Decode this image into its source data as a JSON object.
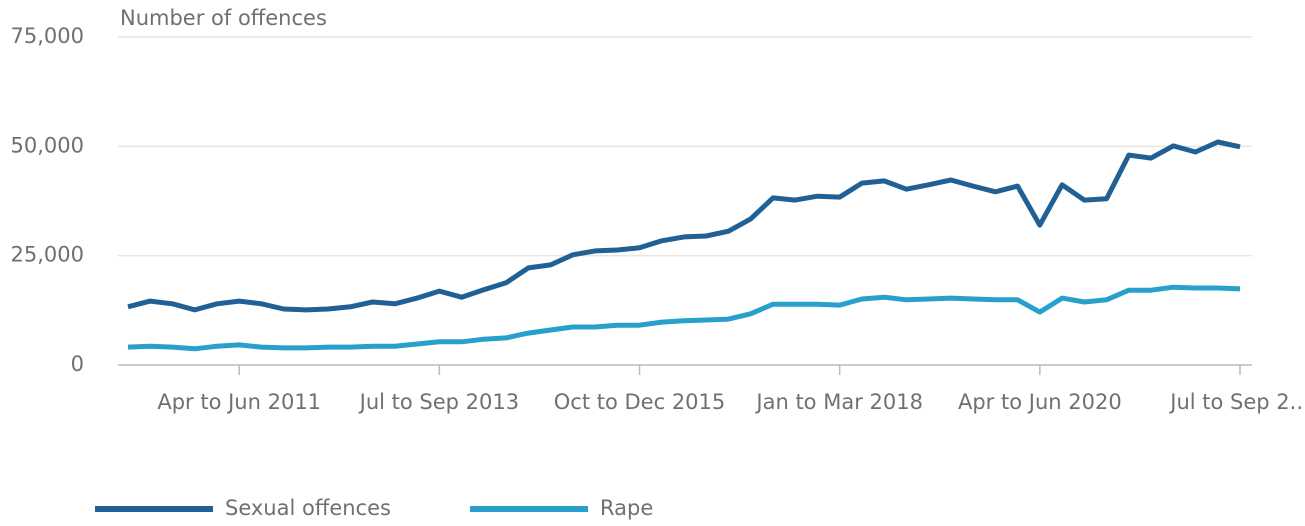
{
  "chart_data": {
    "type": "line",
    "y_axis_label": "Number of offences",
    "categories": [
      null,
      null,
      null,
      null,
      null,
      "Apr to Jun 2011",
      null,
      null,
      null,
      null,
      null,
      null,
      null,
      null,
      "Jul to Sep 2013",
      null,
      null,
      null,
      null,
      null,
      null,
      null,
      null,
      "Oct to Dec 2015",
      null,
      null,
      null,
      null,
      null,
      null,
      null,
      null,
      "Jan to Mar 2018",
      null,
      null,
      null,
      null,
      null,
      null,
      null,
      null,
      "Apr to Jun 2020",
      null,
      null,
      null,
      null,
      null,
      null,
      null,
      null,
      "Jul to Sep 2..."
    ],
    "series": [
      {
        "name": "Sexual offences",
        "color": "#206095",
        "values": [
          13300,
          14600,
          14000,
          12600,
          14000,
          14600,
          14000,
          12800,
          12600,
          12800,
          13300,
          14400,
          14000,
          15300,
          16900,
          15500,
          17200,
          18800,
          22200,
          22900,
          25200,
          26100,
          26300,
          26800,
          28400,
          29300,
          29500,
          30600,
          33400,
          38200,
          37700,
          38600,
          38400,
          41600,
          42100,
          40200,
          41200,
          42300,
          40900,
          39600,
          40900,
          32000,
          41200,
          37700,
          38000,
          48000,
          47300,
          50100,
          48700,
          51000,
          49900
        ]
      },
      {
        "name": "Rape",
        "color": "#27a0cc",
        "values": [
          4100,
          4300,
          4100,
          3700,
          4300,
          4600,
          4100,
          3900,
          3900,
          4100,
          4100,
          4300,
          4300,
          4800,
          5300,
          5300,
          5900,
          6200,
          7300,
          8000,
          8700,
          8700,
          9100,
          9100,
          9800,
          10100,
          10300,
          10500,
          11700,
          13900,
          13900,
          13900,
          13700,
          15100,
          15500,
          14900,
          15100,
          15300,
          15100,
          14900,
          14900,
          12100,
          15300,
          14400,
          14900,
          17100,
          17100,
          17800,
          17600,
          17600,
          17400
        ]
      }
    ],
    "ylim": [
      0,
      75000
    ],
    "yticks": [
      0,
      {
        "value": 25000,
        "label": "25,000"
      },
      {
        "value": 50000,
        "label": "50,000"
      },
      {
        "value": 75000,
        "label": "75,000"
      }
    ],
    "grid": true
  }
}
